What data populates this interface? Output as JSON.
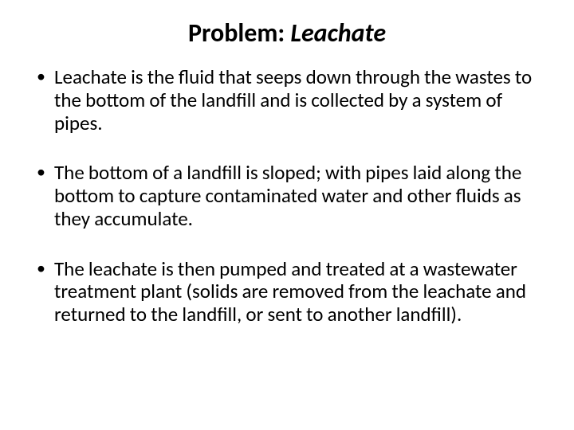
{
  "title": {
    "prefix": "Problem: ",
    "emphasis": "Leachate"
  },
  "bullets": [
    "Leachate is the fluid that seeps down through the wastes to the bottom of the landfill and is collected by a system of pipes.",
    "The bottom of a landfill is sloped; with pipes laid along the bottom to capture contaminated water and other fluids as they accumulate.",
    " The leachate is then pumped and treated at a wastewater treatment plant (solids are removed from the leachate and returned to the landfill, or sent to another landfill)."
  ],
  "colors": {
    "background": "#ffffff",
    "text": "#000000"
  },
  "typography": {
    "title_fontsize": 32,
    "title_weight": 700,
    "body_fontsize": 25,
    "font_family": "Calibri"
  }
}
